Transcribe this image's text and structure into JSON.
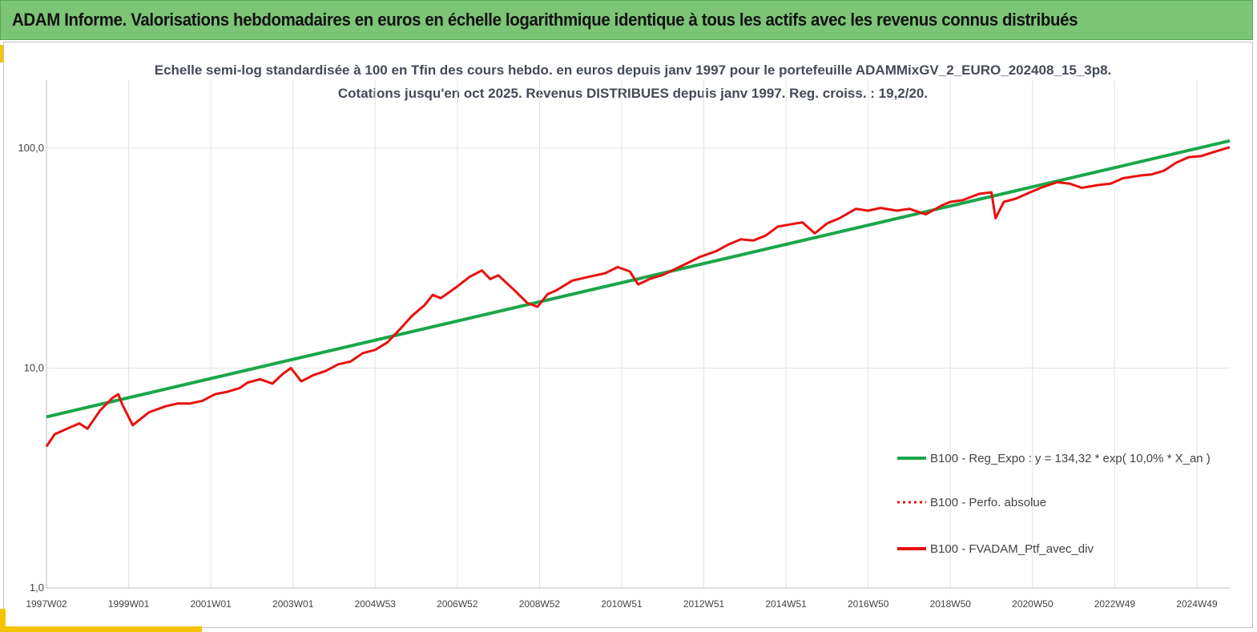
{
  "header": {
    "title": "ADAM Informe. Valorisations hebdomadaires en euros en échelle logarithmique identique à tous les actifs avec les revenus connus distribués"
  },
  "colors": {
    "banner": "#7cc576",
    "accent": "#f4c400",
    "regression": "#1aa64a",
    "portfolio": "#e8100e"
  },
  "chart_data": {
    "type": "line",
    "title": "Echelle semi-log standardisée à 100 en Tfin des cours hebdo. en euros depuis janv 1997 pour le portefeuille ADAMMixGV_2_EURO_202408_15_3p8.",
    "subtitle": "Cotations jusqu'en oct 2025. Revenus DISTRIBUES depuis janv 1997. Reg. croiss. : 19,2/20.",
    "y_scale": "log",
    "ylim": [
      1,
      200
    ],
    "y_ticks": [
      {
        "value": 1,
        "label": "1,0"
      },
      {
        "value": 10,
        "label": "10,0"
      },
      {
        "value": 100,
        "label": "100,0"
      }
    ],
    "x_range": [
      1997.0,
      2025.8
    ],
    "x_ticks": [
      {
        "value": 1997.0,
        "label": "1997W02"
      },
      {
        "value": 1999.0,
        "label": "1999W01"
      },
      {
        "value": 2001.0,
        "label": "2001W01"
      },
      {
        "value": 2003.0,
        "label": "2003W01"
      },
      {
        "value": 2005.0,
        "label": "2004W53"
      },
      {
        "value": 2007.0,
        "label": "2006W52"
      },
      {
        "value": 2009.0,
        "label": "2008W52"
      },
      {
        "value": 2011.0,
        "label": "2010W51"
      },
      {
        "value": 2013.0,
        "label": "2012W51"
      },
      {
        "value": 2015.0,
        "label": "2014W51"
      },
      {
        "value": 2017.0,
        "label": "2016W50"
      },
      {
        "value": 2019.0,
        "label": "2018W50"
      },
      {
        "value": 2021.0,
        "label": "2020W50"
      },
      {
        "value": 2023.0,
        "label": "2022W49"
      },
      {
        "value": 2025.0,
        "label": "2024W49"
      }
    ],
    "grid": true,
    "legend_position": "bottom-right",
    "series": [
      {
        "name": "B100 - Reg_Expo : y = 134,32 * exp( 10,0% *  X_an )",
        "color": "#1aa64a",
        "style": "solid",
        "x": [
          1997.0,
          2025.8
        ],
        "y": [
          6.0,
          108.0
        ]
      },
      {
        "name": "B100 - Perfo. absolue",
        "color": "#e8100e",
        "style": "dotted",
        "x": [],
        "y": []
      },
      {
        "name": "B100 - FVADAM_Ptf_avec_div",
        "color": "#e8100e",
        "style": "solid",
        "x": [
          1997.0,
          1997.2,
          1997.5,
          1997.8,
          1998.0,
          1998.3,
          1998.6,
          1998.75,
          1998.85,
          1999.1,
          1999.5,
          1999.9,
          2000.2,
          2000.5,
          2000.8,
          2001.1,
          2001.4,
          2001.7,
          2001.9,
          2002.2,
          2002.5,
          2002.75,
          2002.95,
          2003.2,
          2003.5,
          2003.8,
          2004.1,
          2004.4,
          2004.7,
          2005.0,
          2005.3,
          2005.6,
          2005.9,
          2006.2,
          2006.4,
          2006.6,
          2007.0,
          2007.3,
          2007.6,
          2007.8,
          2008.0,
          2008.4,
          2008.7,
          2008.95,
          2009.2,
          2009.4,
          2009.8,
          2010.2,
          2010.6,
          2010.9,
          2011.2,
          2011.4,
          2011.7,
          2012.0,
          2012.3,
          2012.6,
          2012.9,
          2013.3,
          2013.6,
          2013.9,
          2014.2,
          2014.5,
          2014.8,
          2015.1,
          2015.4,
          2015.7,
          2016.0,
          2016.3,
          2016.7,
          2017.0,
          2017.3,
          2017.7,
          2018.0,
          2018.4,
          2018.8,
          2019.0,
          2019.3,
          2019.7,
          2020.0,
          2020.1,
          2020.3,
          2020.6,
          2020.9,
          2021.2,
          2021.6,
          2021.9,
          2022.2,
          2022.6,
          2022.9,
          2023.2,
          2023.6,
          2023.9,
          2024.2,
          2024.5,
          2024.8,
          2025.1,
          2025.4,
          2025.8
        ],
        "y": [
          4.4,
          5.0,
          5.3,
          5.6,
          5.3,
          6.4,
          7.3,
          7.6,
          6.8,
          5.5,
          6.3,
          6.7,
          6.9,
          6.9,
          7.1,
          7.6,
          7.8,
          8.1,
          8.6,
          8.9,
          8.5,
          9.4,
          10.0,
          8.7,
          9.3,
          9.7,
          10.4,
          10.7,
          11.7,
          12.1,
          13.1,
          15.0,
          17.3,
          19.3,
          21.5,
          20.8,
          23.5,
          26.0,
          27.8,
          25.4,
          26.4,
          22.5,
          19.8,
          19.0,
          21.7,
          22.5,
          25.0,
          26.0,
          27.0,
          28.8,
          27.5,
          24.0,
          25.5,
          26.5,
          28.2,
          30.0,
          32.0,
          34.0,
          36.5,
          38.5,
          38.0,
          40.0,
          44.0,
          45.0,
          46.0,
          41.0,
          45.5,
          48.0,
          53.0,
          52.0,
          53.5,
          52.0,
          53.0,
          50.0,
          55.0,
          57.0,
          58.0,
          62.0,
          63.0,
          48.0,
          57.0,
          59.0,
          62.5,
          66.0,
          70.0,
          69.0,
          66.0,
          68.0,
          69.0,
          73.0,
          75.0,
          76.0,
          79.0,
          86.0,
          91.0,
          92.0,
          96.0,
          101.0
        ]
      }
    ]
  }
}
